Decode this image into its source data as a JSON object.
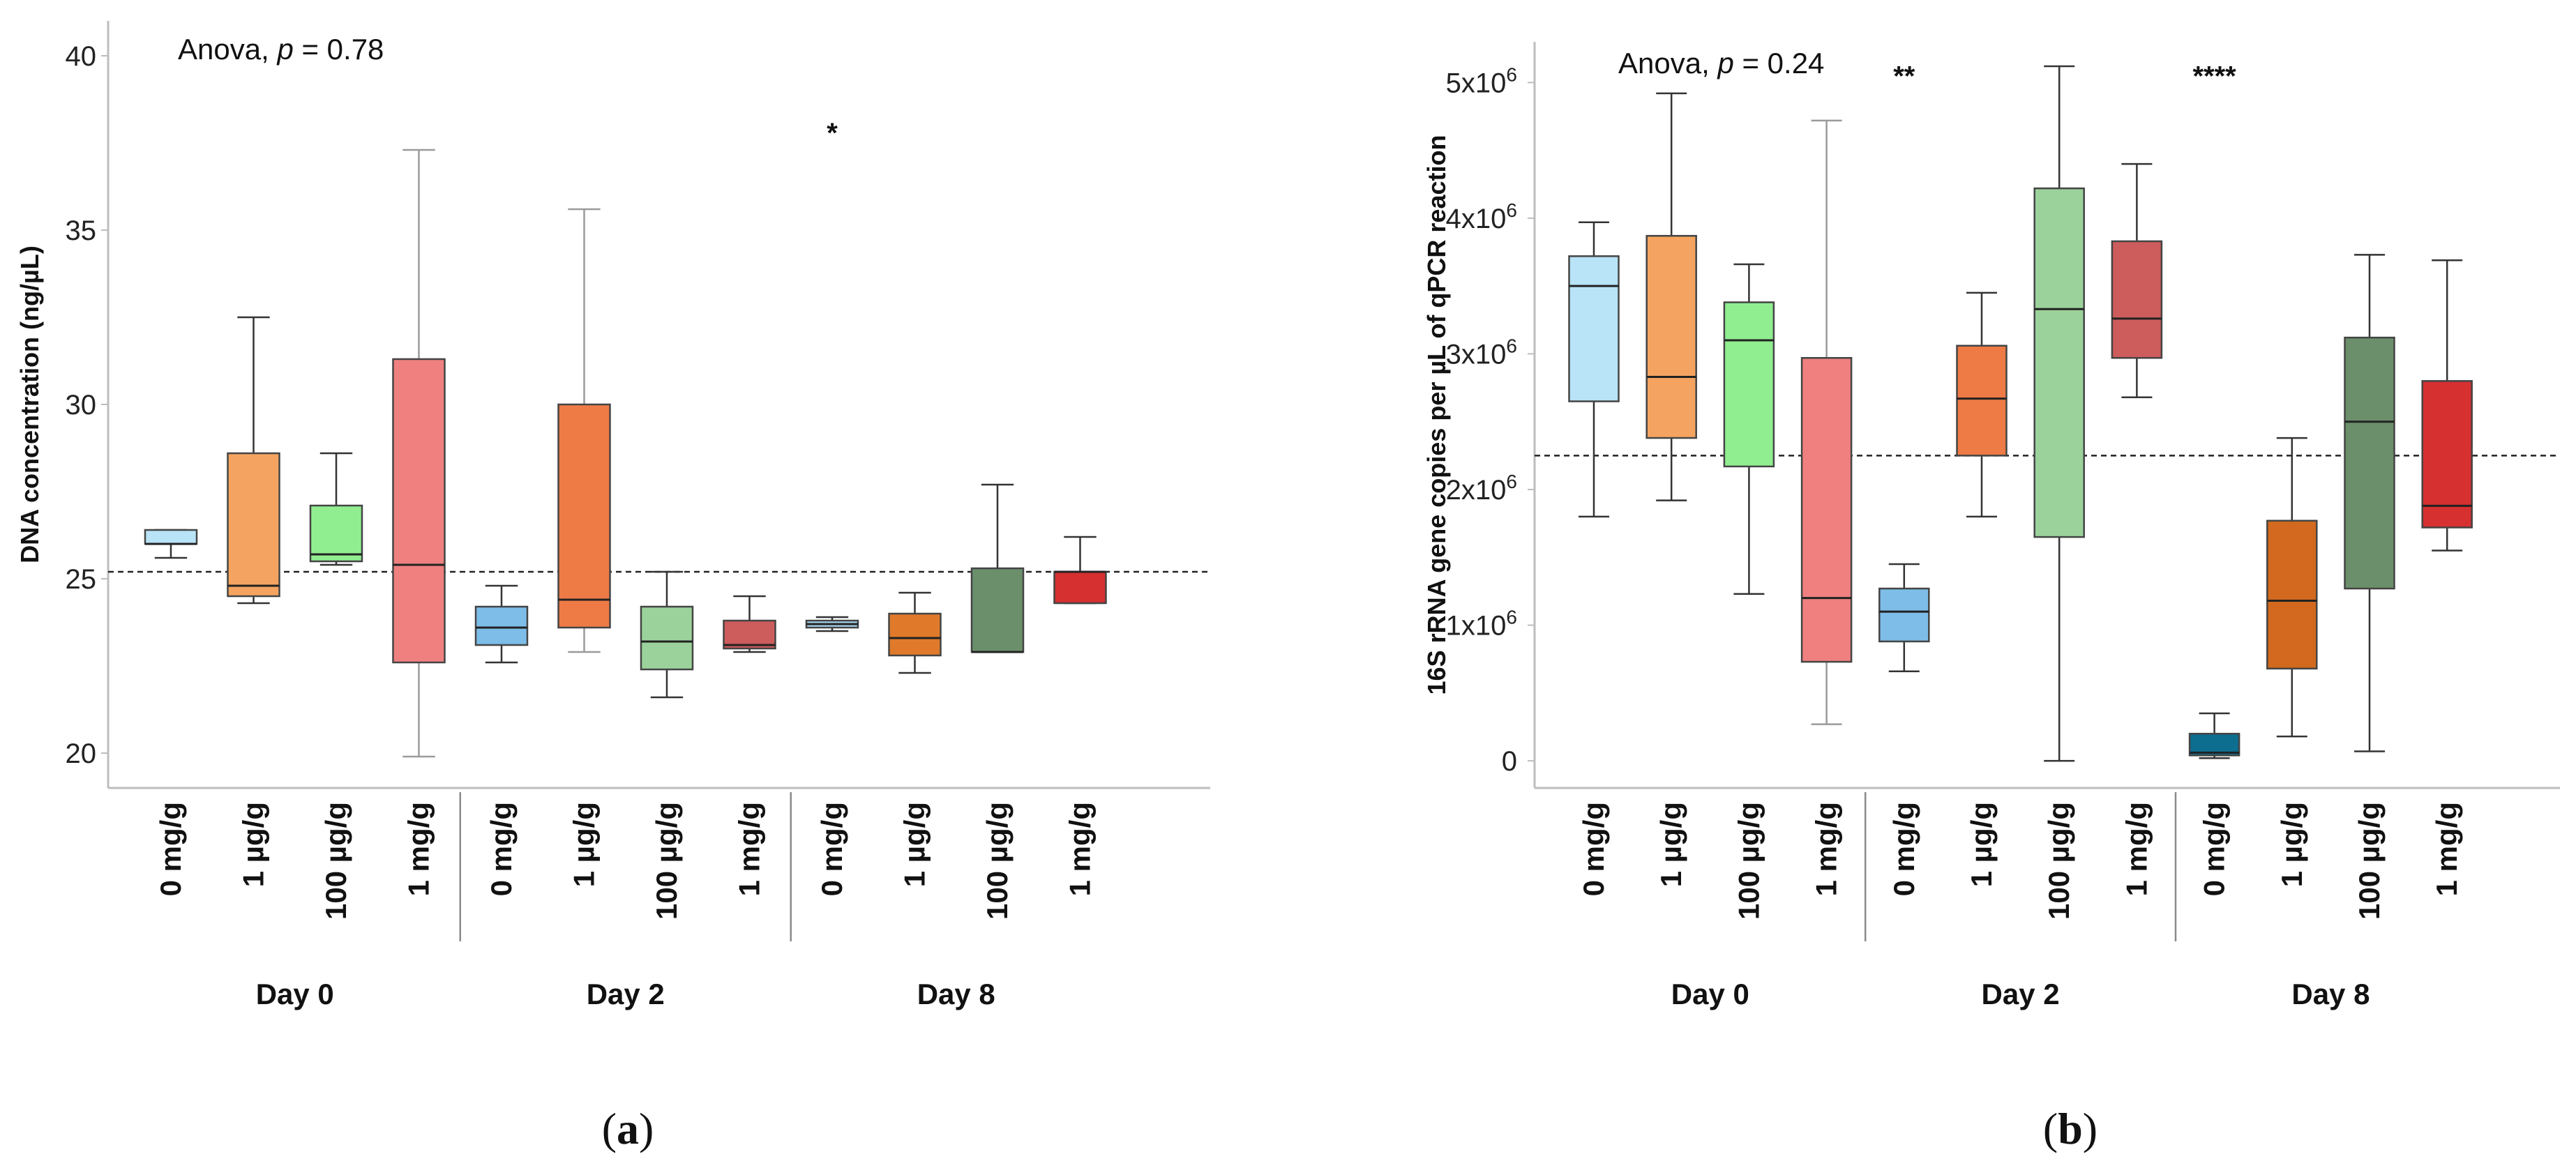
{
  "figure": {
    "panels": [
      "(a)",
      "(b)"
    ],
    "panel_letters": [
      "a",
      "b"
    ]
  },
  "chart_data": [
    {
      "type": "box",
      "panel": "a",
      "title": "",
      "ylabel": "DNA concentration (ng/µL)",
      "ylim": [
        19,
        41
      ],
      "yticks": [
        20,
        25,
        30,
        35,
        40
      ],
      "ytick_labels": [
        "20",
        "25",
        "30",
        "35",
        "40"
      ],
      "annotation": {
        "prefix": "Anova, ",
        "p_symbol": "p",
        "suffix": " = 0.78"
      },
      "reference_line": 25.2,
      "groups": [
        "Day 0",
        "Day 2",
        "Day 8"
      ],
      "categories": [
        "0 mg/g",
        "1 µg/g",
        "100 µg/g",
        "1 mg/g"
      ],
      "significance": [
        {
          "group": "Day 8",
          "category": "0 mg/g",
          "label": "*",
          "y": 37.8
        }
      ],
      "series": [
        {
          "group": "Day 0",
          "category": "0 mg/g",
          "color": "#b9e3f7",
          "min": 25.6,
          "q1": 26.0,
          "median": 26.0,
          "q3": 26.4,
          "max": 26.4
        },
        {
          "group": "Day 0",
          "category": "1 µg/g",
          "color": "#f4a460",
          "min": 24.3,
          "q1": 24.5,
          "median": 24.8,
          "q3": 28.6,
          "max": 32.5
        },
        {
          "group": "Day 0",
          "category": "100 µg/g",
          "color": "#90ee90",
          "min": 25.4,
          "q1": 25.5,
          "median": 25.7,
          "q3": 27.1,
          "max": 28.6
        },
        {
          "group": "Day 0",
          "category": "1 mg/g",
          "color": "#f08080",
          "min": 19.9,
          "q1": 22.6,
          "median": 25.4,
          "q3": 31.3,
          "max": 37.3
        },
        {
          "group": "Day 2",
          "category": "0 mg/g",
          "color": "#7dbde8",
          "min": 22.6,
          "q1": 23.1,
          "median": 23.6,
          "q3": 24.2,
          "max": 24.8
        },
        {
          "group": "Day 2",
          "category": "1 µg/g",
          "color": "#ee7a46",
          "min": 22.9,
          "q1": 23.6,
          "median": 24.4,
          "q3": 30.0,
          "max": 35.6
        },
        {
          "group": "Day 2",
          "category": "100 µg/g",
          "color": "#9bd29b",
          "min": 21.6,
          "q1": 22.4,
          "median": 23.2,
          "q3": 24.2,
          "max": 25.2
        },
        {
          "group": "Day 2",
          "category": "1 mg/g",
          "color": "#cd5c5c",
          "min": 22.9,
          "q1": 23.0,
          "median": 23.1,
          "q3": 23.8,
          "max": 24.5
        },
        {
          "group": "Day 8",
          "category": "0 mg/g",
          "color": "#a7d2ec",
          "min": 23.5,
          "q1": 23.6,
          "median": 23.7,
          "q3": 23.8,
          "max": 23.9
        },
        {
          "group": "Day 8",
          "category": "1 µg/g",
          "color": "#e07a2a",
          "min": 22.3,
          "q1": 22.8,
          "median": 23.3,
          "q3": 24.0,
          "max": 24.6
        },
        {
          "group": "Day 8",
          "category": "100 µg/g",
          "color": "#6b8f6b",
          "min": 22.9,
          "q1": 22.9,
          "median": 22.9,
          "q3": 25.3,
          "max": 27.7
        },
        {
          "group": "Day 8",
          "category": "1 mg/g",
          "color": "#d63030",
          "min": 24.3,
          "q1": 24.3,
          "median": 25.2,
          "q3": 25.2,
          "max": 26.2
        }
      ]
    },
    {
      "type": "box",
      "panel": "b",
      "title": "",
      "ylabel": "16S rRNA gene copies per µL of qPCR reaction",
      "ylim": [
        -0.2,
        5.3
      ],
      "yticks": [
        0,
        1,
        2,
        3,
        4,
        5
      ],
      "ytick_labels": [
        "0",
        "1x10",
        "2x10",
        "3x10",
        "4x10",
        "5x10"
      ],
      "ytick_exponents": [
        "",
        "6",
        "6",
        "6",
        "6",
        "6"
      ],
      "y_unit_multiplier": 1000000,
      "annotation": {
        "prefix": "Anova, ",
        "p_symbol": "p",
        "suffix": " = 0.24"
      },
      "reference_line": 2.25,
      "groups": [
        "Day 0",
        "Day 2",
        "Day 8"
      ],
      "categories": [
        "0 mg/g",
        "1 µg/g",
        "100 µg/g",
        "1 mg/g"
      ],
      "significance": [
        {
          "group": "Day 2",
          "category": "0 mg/g",
          "label": "**",
          "y": 5.05
        },
        {
          "group": "Day 8",
          "category": "0 mg/g",
          "label": "****",
          "y": 5.05
        }
      ],
      "series": [
        {
          "group": "Day 0",
          "category": "0 mg/g",
          "color": "#b9e3f7",
          "min": 1.8,
          "q1": 2.65,
          "median": 3.5,
          "q3": 3.72,
          "max": 3.97
        },
        {
          "group": "Day 0",
          "category": "1 µg/g",
          "color": "#f4a460",
          "min": 1.92,
          "q1": 2.38,
          "median": 2.83,
          "q3": 3.87,
          "max": 4.92
        },
        {
          "group": "Day 0",
          "category": "100 µg/g",
          "color": "#90ee90",
          "min": 1.23,
          "q1": 2.17,
          "median": 3.1,
          "q3": 3.38,
          "max": 3.66
        },
        {
          "group": "Day 0",
          "category": "1 mg/g",
          "color": "#f08080",
          "min": 0.27,
          "q1": 0.73,
          "median": 1.2,
          "q3": 2.97,
          "max": 4.72
        },
        {
          "group": "Day 2",
          "category": "0 mg/g",
          "color": "#7dbde8",
          "min": 0.66,
          "q1": 0.88,
          "median": 1.1,
          "q3": 1.27,
          "max": 1.45
        },
        {
          "group": "Day 2",
          "category": "1 µg/g",
          "color": "#ee7a46",
          "min": 1.8,
          "q1": 2.25,
          "median": 2.67,
          "q3": 3.06,
          "max": 3.45
        },
        {
          "group": "Day 2",
          "category": "100 µg/g",
          "color": "#9bd29b",
          "min": 0.0,
          "q1": 1.65,
          "median": 3.33,
          "q3": 4.22,
          "max": 5.12
        },
        {
          "group": "Day 2",
          "category": "1 mg/g",
          "color": "#cd5c5c",
          "min": 2.68,
          "q1": 2.97,
          "median": 3.26,
          "q3": 3.83,
          "max": 4.4
        },
        {
          "group": "Day 8",
          "category": "0 mg/g",
          "color": "#0d6e8f",
          "min": 0.02,
          "q1": 0.04,
          "median": 0.06,
          "q3": 0.2,
          "max": 0.35
        },
        {
          "group": "Day 8",
          "category": "1 µg/g",
          "color": "#d2691e",
          "min": 0.18,
          "q1": 0.68,
          "median": 1.18,
          "q3": 1.77,
          "max": 2.38
        },
        {
          "group": "Day 8",
          "category": "100 µg/g",
          "color": "#6b8f6b",
          "min": 0.07,
          "q1": 1.27,
          "median": 2.5,
          "q3": 3.12,
          "max": 3.73
        },
        {
          "group": "Day 8",
          "category": "1 mg/g",
          "color": "#d63030",
          "min": 1.55,
          "q1": 1.72,
          "median": 1.88,
          "q3": 2.8,
          "max": 3.69
        }
      ]
    }
  ]
}
